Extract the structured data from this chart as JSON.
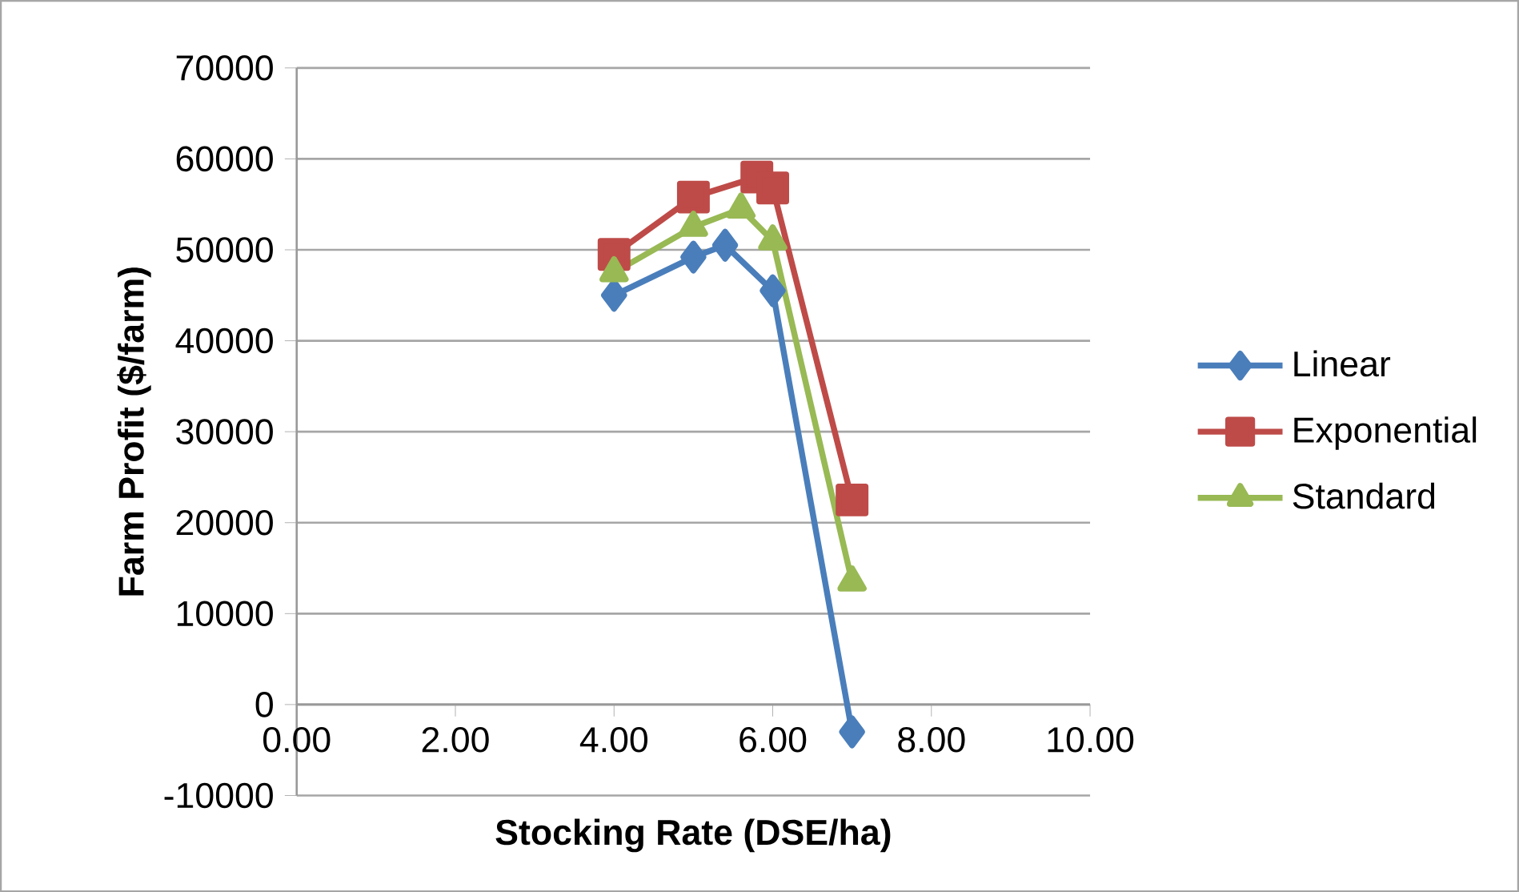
{
  "chart_data": {
    "type": "line",
    "xlabel": "Stocking Rate (DSE/ha)",
    "ylabel": "Farm Profit ($/farm)",
    "xlim": [
      0,
      10
    ],
    "xticks": [
      {
        "value": 0,
        "label": "0.00"
      },
      {
        "value": 2,
        "label": "2.00"
      },
      {
        "value": 4,
        "label": "4.00"
      },
      {
        "value": 6,
        "label": "6.00"
      },
      {
        "value": 8,
        "label": "8.00"
      },
      {
        "value": 10,
        "label": "10.00"
      }
    ],
    "ylim": [
      -10000,
      70000
    ],
    "yticks": [
      -10000,
      0,
      10000,
      20000,
      30000,
      40000,
      50000,
      60000,
      70000
    ],
    "grid": "y",
    "legend": "right",
    "series": [
      {
        "name": "Linear",
        "color": "#4a7ebb",
        "marker": "diamond",
        "x": [
          4.0,
          5.0,
          5.4,
          6.0,
          7.0
        ],
        "values": [
          45000,
          49200,
          50500,
          45500,
          -3000
        ]
      },
      {
        "name": "Exponential",
        "color": "#be4b48",
        "marker": "square",
        "x": [
          4.0,
          5.0,
          5.8,
          6.0,
          7.0
        ],
        "values": [
          49500,
          55800,
          58000,
          56800,
          22500
        ]
      },
      {
        "name": "Standard",
        "color": "#98b954",
        "marker": "triangle",
        "x": [
          4.0,
          5.0,
          5.6,
          6.0,
          7.0
        ],
        "values": [
          47500,
          52500,
          54500,
          51000,
          13500
        ]
      }
    ]
  }
}
